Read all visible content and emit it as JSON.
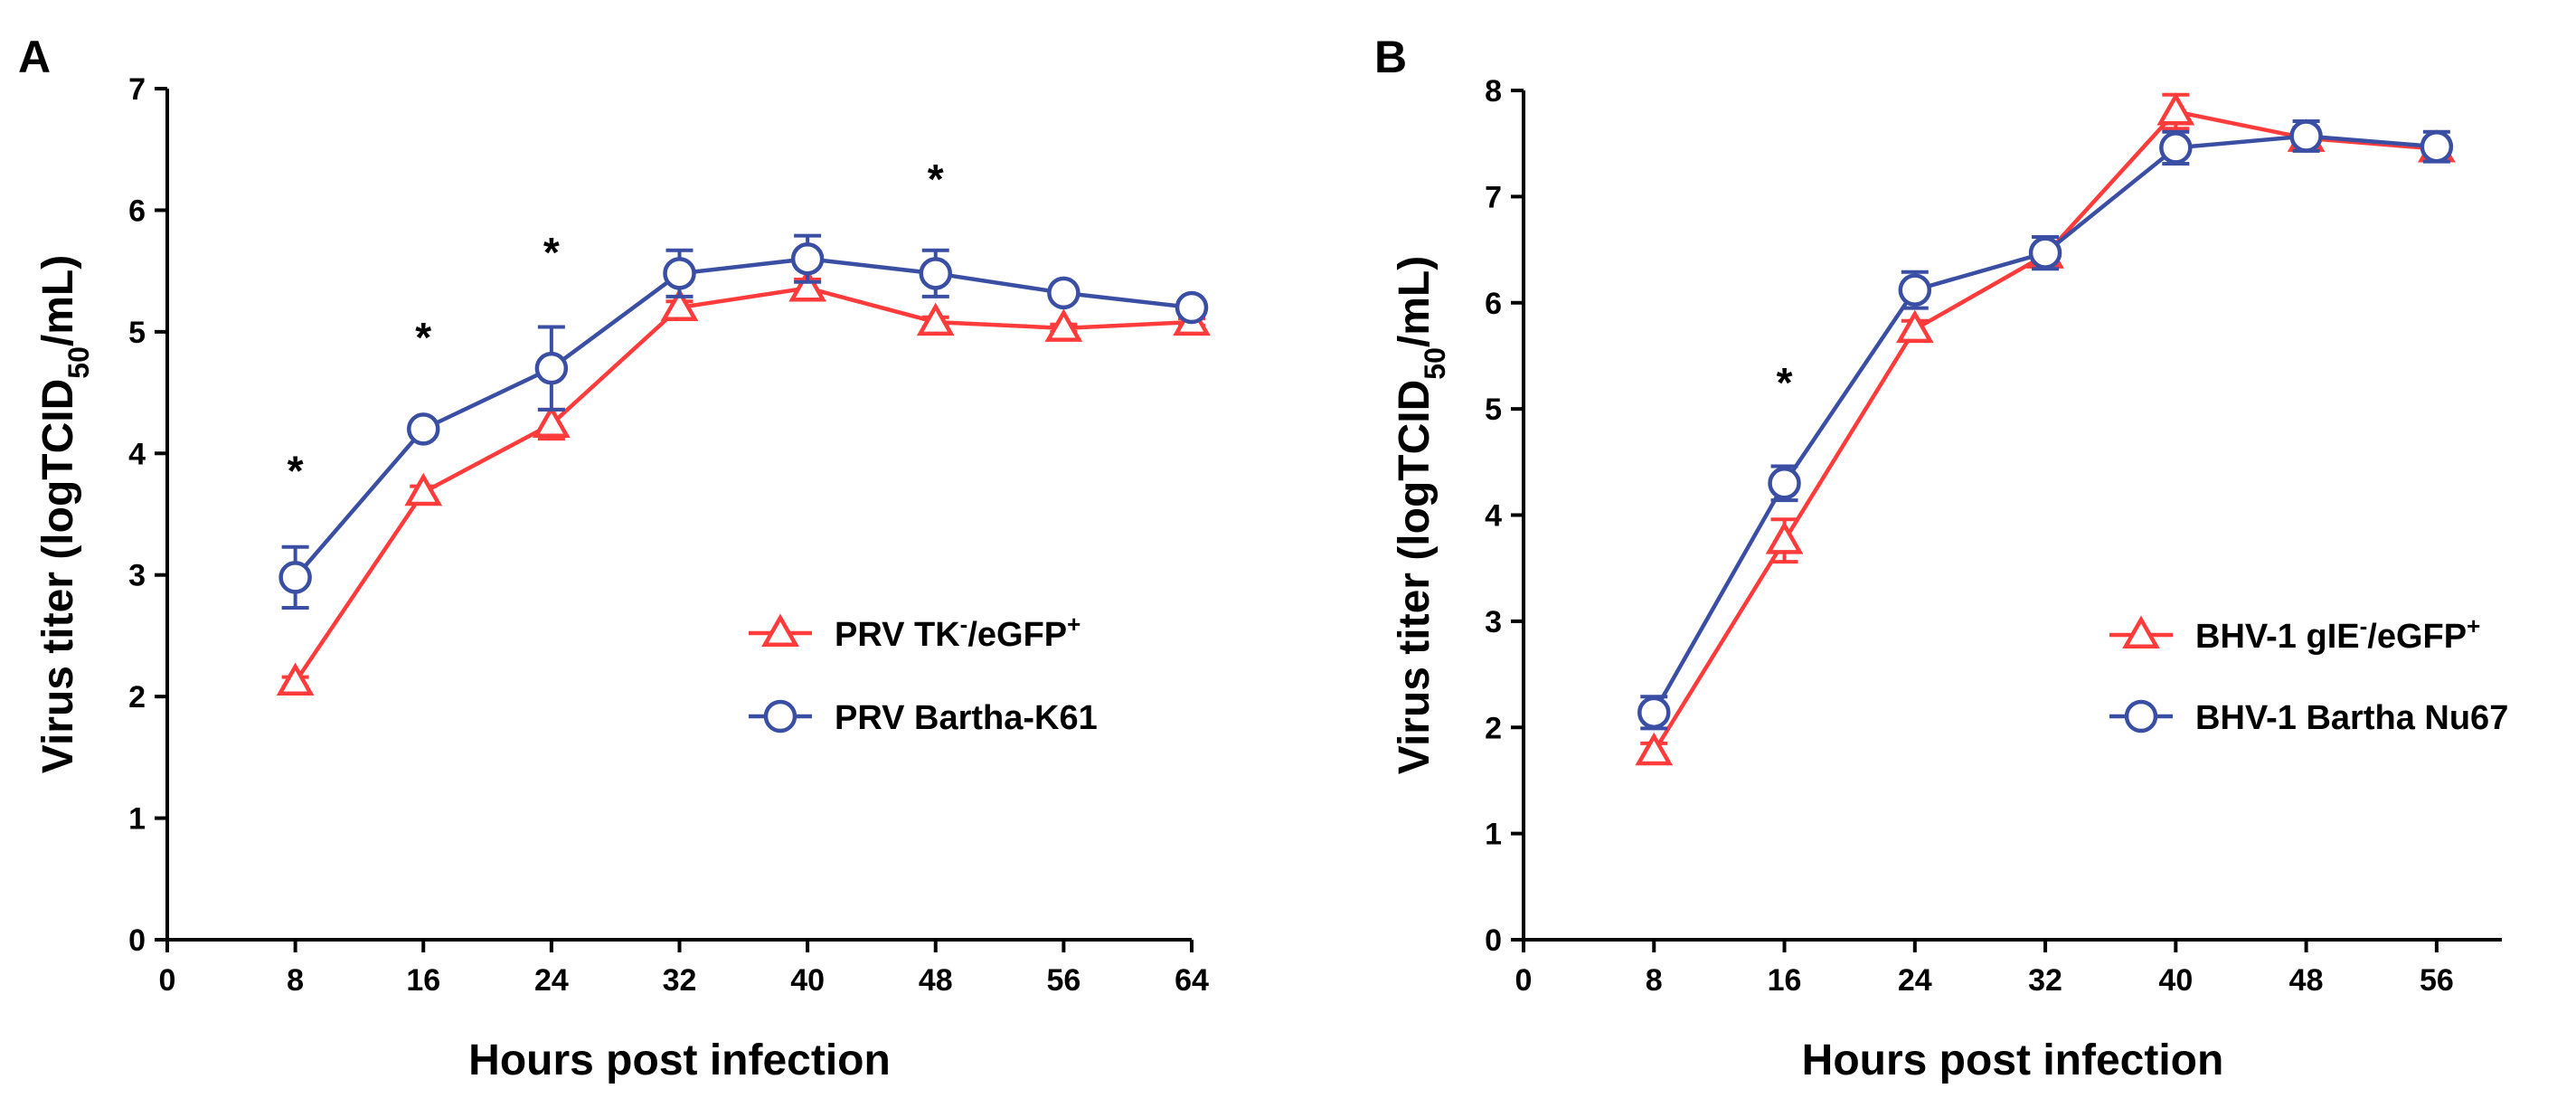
{
  "chart_data": [
    {
      "type": "line",
      "panel_label": "A",
      "xlabel": "Hours post infection",
      "ylabel": "Virus titer (logTCID50/mL)",
      "ylabel_parts": {
        "main": "Virus titer (logTCID",
        "sub": "50",
        "end": "/mL)"
      },
      "xlim": [
        0,
        64
      ],
      "ylim": [
        0,
        7
      ],
      "xticks": [
        0,
        8,
        16,
        24,
        32,
        40,
        48,
        56,
        64
      ],
      "yticks": [
        0,
        1,
        2,
        3,
        4,
        5,
        6,
        7
      ],
      "grid": false,
      "legend_position": "right",
      "significance_x": [
        8,
        16,
        24,
        48
      ],
      "significance_y": [
        3.9,
        5.0,
        5.7,
        6.3
      ],
      "significance_mark": "*",
      "series": [
        {
          "name": "PRV TK-/eGFP+",
          "name_parts": {
            "a": "PRV TK",
            "sup1": "-",
            "b": "/eGFP",
            "sup2": "+"
          },
          "color": "#ff3b3b",
          "marker": "triangle",
          "x": [
            8,
            16,
            24,
            32,
            40,
            48,
            56,
            64
          ],
          "y": [
            2.12,
            3.68,
            4.24,
            5.2,
            5.36,
            5.08,
            5.03,
            5.08
          ],
          "error": [
            0.04,
            0.05,
            0.12,
            0.05,
            0.07,
            0.04,
            0.03,
            0.03
          ]
        },
        {
          "name": "PRV Bartha-K61",
          "color": "#3a4fa3",
          "marker": "circle",
          "x": [
            8,
            16,
            24,
            32,
            40,
            48,
            56,
            64
          ],
          "y": [
            2.98,
            4.2,
            4.7,
            5.48,
            5.6,
            5.48,
            5.32,
            5.2
          ],
          "error": [
            0.25,
            0.05,
            0.34,
            0.19,
            0.19,
            0.19,
            0.04,
            0.04
          ]
        }
      ]
    },
    {
      "type": "line",
      "panel_label": "B",
      "xlabel": "Hours post infection",
      "ylabel": "Virus titer (logTCID50/mL)",
      "ylabel_parts": {
        "main": "Virus titer (logTCID",
        "sub": "50",
        "end": "/mL)"
      },
      "xlim": [
        0,
        60
      ],
      "ylim": [
        0,
        8
      ],
      "xticks": [
        0,
        8,
        16,
        24,
        32,
        40,
        48,
        56
      ],
      "yticks": [
        0,
        1,
        2,
        3,
        4,
        5,
        6,
        7,
        8
      ],
      "grid": false,
      "legend_position": "right",
      "significance_x": [
        16
      ],
      "significance_y": [
        5.3
      ],
      "significance_mark": "*",
      "series": [
        {
          "name": "BHV-1 gIE-/eGFP+",
          "name_parts": {
            "a": "BHV-1 gIE",
            "sup1": "-",
            "b": "/eGFP",
            "sup2": "+"
          },
          "color": "#ff3b3b",
          "marker": "triangle",
          "x": [
            8,
            16,
            24,
            32,
            40,
            48,
            56
          ],
          "y": [
            1.77,
            3.76,
            5.75,
            6.45,
            7.8,
            7.55,
            7.45
          ],
          "error": [
            0.08,
            0.2,
            0.08,
            0.08,
            0.16,
            0.1,
            0.1
          ]
        },
        {
          "name": "BHV-1 Bartha Nu67",
          "color": "#3a4fa3",
          "marker": "circle",
          "x": [
            8,
            16,
            24,
            32,
            40,
            48,
            56
          ],
          "y": [
            2.14,
            4.3,
            6.12,
            6.47,
            7.46,
            7.57,
            7.47
          ],
          "error": [
            0.15,
            0.16,
            0.17,
            0.15,
            0.15,
            0.14,
            0.14
          ]
        }
      ]
    }
  ]
}
